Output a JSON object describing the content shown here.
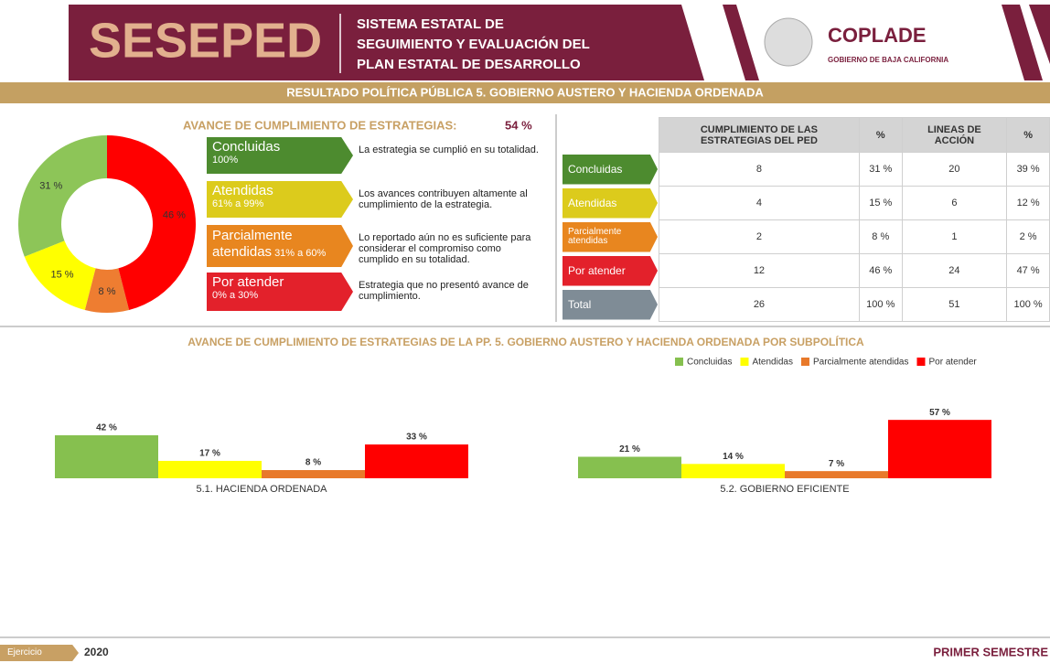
{
  "header": {
    "logo": "SESEPED",
    "system": [
      "SISTEMA ESTATAL DE",
      "SEGUIMIENTO Y EVALUACIÓN DEL",
      "PLAN ESTATAL DE DESARROLLO"
    ],
    "org": "COPLADE",
    "org_sub": "GOBIERNO DE BAJA CALIFORNIA"
  },
  "banner": "RESULTADO POLÍTICA PÚBLICA 5. GOBIERNO AUSTERO Y HACIENDA ORDENADA",
  "summary": {
    "title": "AVANCE DE CUMPLIMIENTO DE ESTRATEGIAS:",
    "value": "54 %"
  },
  "key": [
    {
      "name": "Concluidas",
      "range": "100%",
      "description": "La estrategia se cumplió en su totalidad.",
      "color": "#4d8b2f"
    },
    {
      "name": "Atendidas",
      "range": "61% a 99%",
      "description": "Los avances contribuyen altamente al cumplimiento de la estrategia.",
      "color": "#dccb1c"
    },
    {
      "name": "Parcialmente atendidas",
      "range": "31% a 60%",
      "description": "Lo reportado aún no es suficiente para considerar el compromiso como cumplido en su totalidad.",
      "color": "#e8861f"
    },
    {
      "name": "Por atender",
      "range": "0% a 30%",
      "description": "Estrategia que no presentó avance de cumplimiento.",
      "color": "#e3212b"
    }
  ],
  "table": {
    "header": [
      "CUMPLIMIENTO DE LAS ESTRATEGIAS DEL PED",
      "%",
      "LINEAS DE ACCIÓN",
      "%"
    ],
    "rows": [
      [
        "Concluidas",
        "8",
        "31 %",
        "20",
        "39 %"
      ],
      [
        "Atendidas",
        "4",
        "15 %",
        "6",
        "12 %"
      ],
      [
        "Parcialmente atendidas",
        "2",
        "8 %",
        "1",
        "2 %"
      ],
      [
        "Por atender",
        "12",
        "46 %",
        "24",
        "47 %"
      ],
      [
        "Total",
        "26",
        "100 %",
        "51",
        "100 %"
      ]
    ],
    "row_colors": [
      "#4d8b2f",
      "#dccb1c",
      "#e8861f",
      "#e3212b",
      "#7f8c96"
    ]
  },
  "chart_data": [
    {
      "type": "pie",
      "categories": [
        "Concluidas",
        "Atendidas",
        "Parcialmente atendidas",
        "Por atender"
      ],
      "values": [
        31,
        15,
        8,
        46
      ],
      "value_labels": [
        "31 %",
        "15 %",
        "8 %",
        "46 %"
      ],
      "colors": [
        "#8dc558",
        "#ffff00",
        "#ee7d31",
        "#ff0000"
      ]
    },
    {
      "type": "bar",
      "title": "AVANCE DE CUMPLIMIENTO DE ESTRATEGIAS DE LA PP. 5. GOBIERNO AUSTERO Y HACIENDA ORDENADA POR SUBPOLÍTICA",
      "categories": [
        "5.1. HACIENDA ORDENADA",
        "5.2. GOBIERNO EFICIENTE"
      ],
      "series": [
        {
          "name": "Concluidas",
          "color": "#86c04f",
          "values": [
            42,
            21
          ],
          "value_labels": [
            "42 %",
            "21 %"
          ]
        },
        {
          "name": "Atendidas",
          "color": "#ffff00",
          "values": [
            17,
            14
          ],
          "value_labels": [
            "17 %",
            "14 %"
          ]
        },
        {
          "name": "Parcialmente atendidas",
          "color": "#e8792a",
          "values": [
            8,
            7
          ],
          "value_labels": [
            "8 %",
            "7 %"
          ]
        },
        {
          "name": "Por atender",
          "color": "#ff0000",
          "values": [
            33,
            57
          ],
          "value_labels": [
            "33 %",
            "57 %"
          ]
        }
      ],
      "legend": "top-right"
    }
  ],
  "footer": {
    "label": "Ejercicio",
    "year": "2020",
    "period": "PRIMER SEMESTRE"
  }
}
